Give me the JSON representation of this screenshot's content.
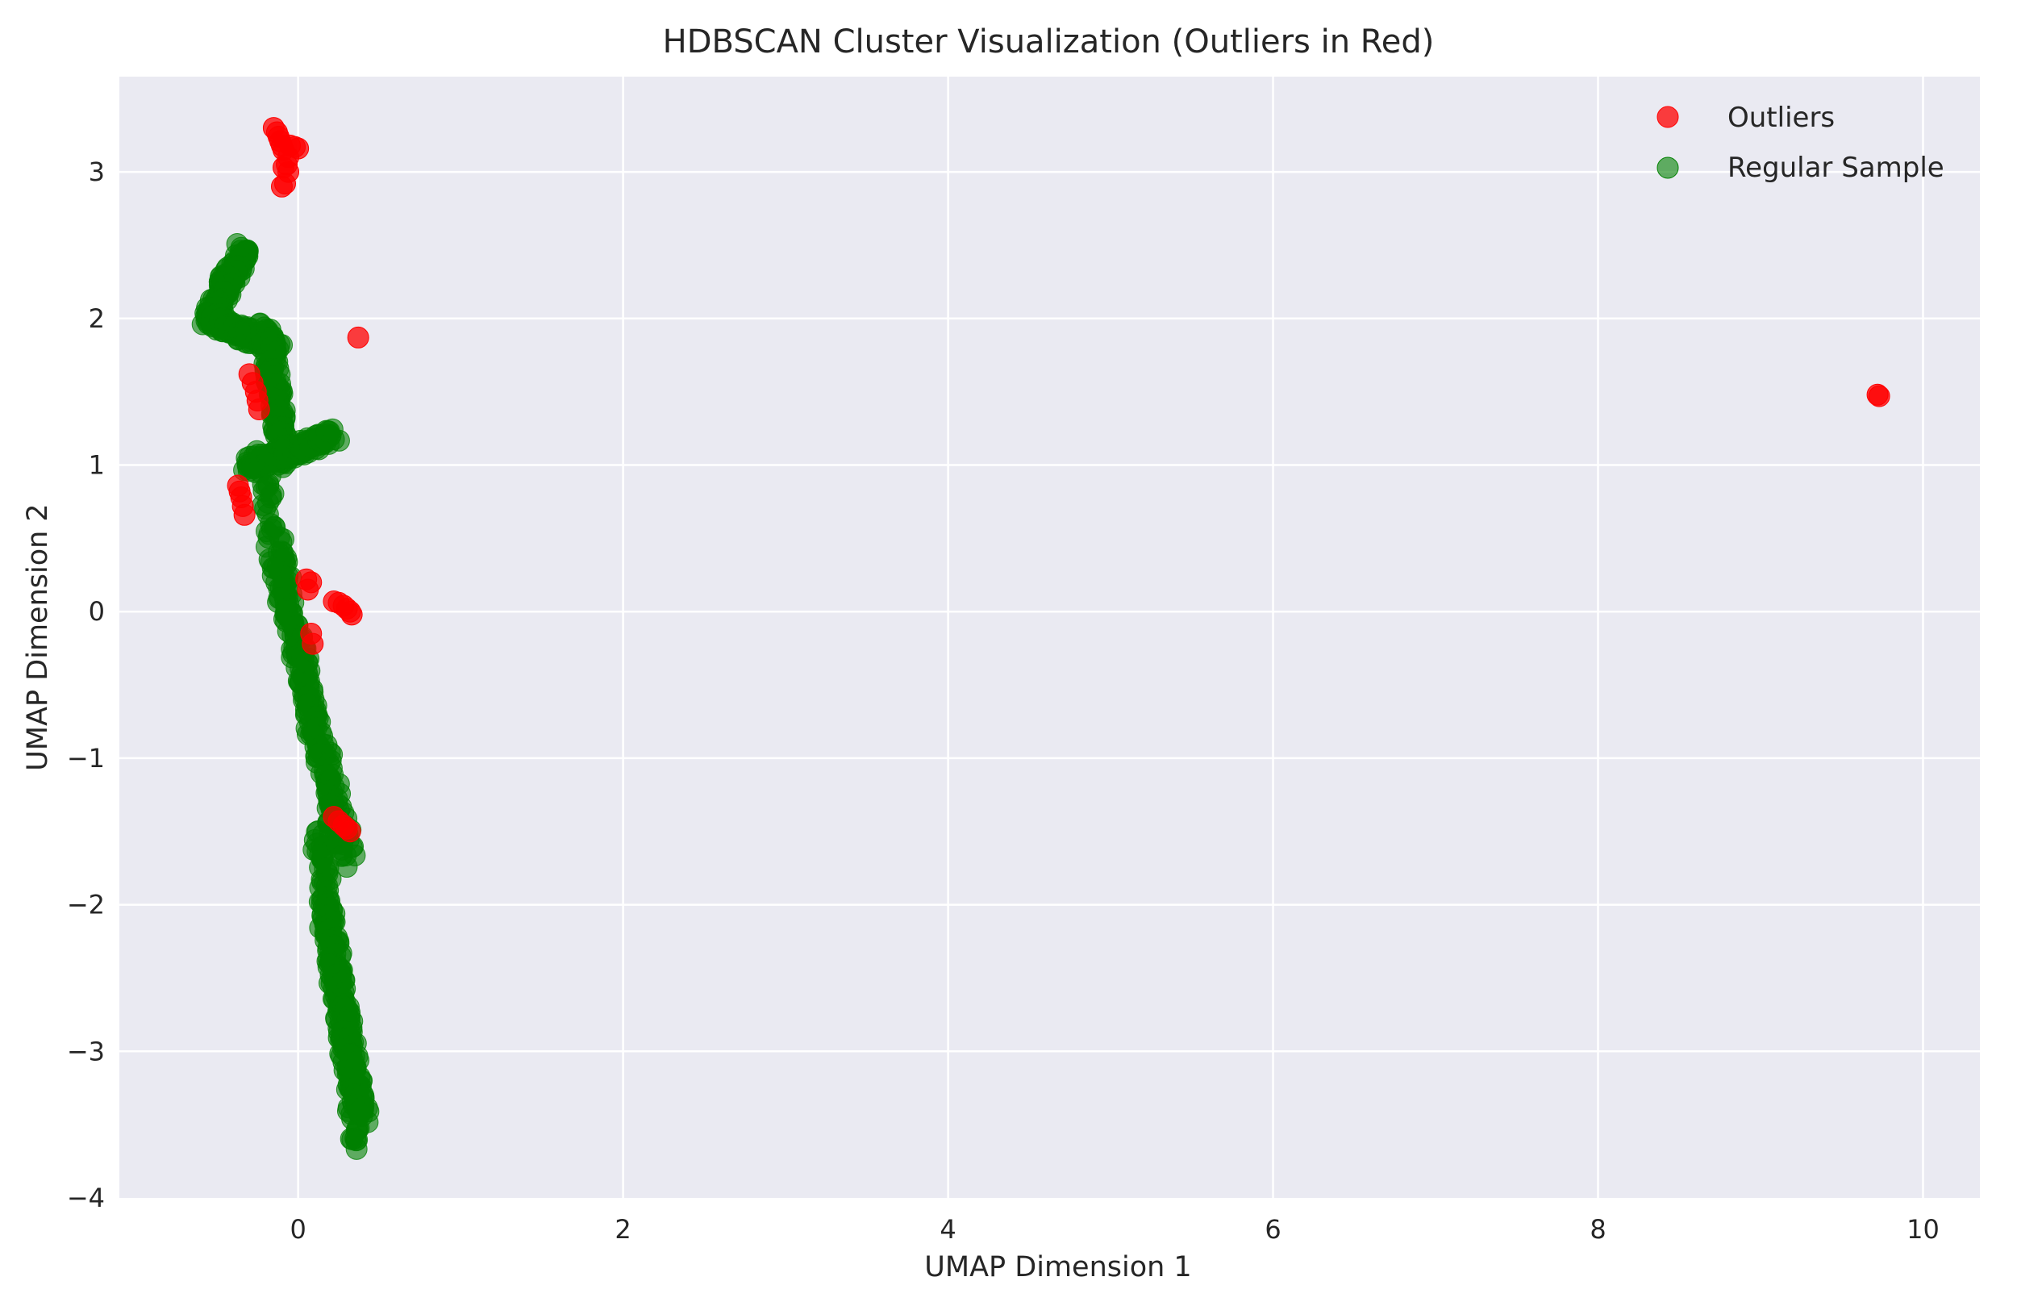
{
  "chart_data": {
    "type": "scatter",
    "title": "HDBSCAN Cluster Visualization (Outliers in Red)",
    "xlabel": "UMAP Dimension 1",
    "ylabel": "UMAP Dimension 2",
    "xlim": [
      -1.1,
      10.35
    ],
    "ylim": [
      -4.0,
      3.65
    ],
    "xticks": [
      0,
      2,
      4,
      6,
      8,
      10
    ],
    "yticks": [
      3,
      2,
      1,
      0,
      -1,
      -2,
      -3,
      -4
    ],
    "xtick_labels": [
      "0",
      "2",
      "4",
      "6",
      "8",
      "10"
    ],
    "ytick_labels": [
      "3",
      "2",
      "1",
      "0",
      "−1",
      "−2",
      "−3",
      "−4"
    ],
    "grid": true,
    "legend": {
      "placement": "top-right"
    },
    "colors": {
      "background": "#eaeaf2",
      "grid": "#ffffff",
      "outliers": "#ff0000",
      "regular": "#008000",
      "text": "#262626"
    },
    "series": [
      {
        "name": "Outliers",
        "color": "#ff0000",
        "opacity": 0.75,
        "points": [
          [
            -0.15,
            3.3
          ],
          [
            -0.13,
            3.27
          ],
          [
            -0.12,
            3.24
          ],
          [
            -0.11,
            3.21
          ],
          [
            -0.1,
            3.18
          ],
          [
            -0.09,
            3.15
          ],
          [
            -0.05,
            3.18
          ],
          [
            -0.02,
            3.17
          ],
          [
            0.0,
            3.16
          ],
          [
            -0.06,
            3.1
          ],
          [
            -0.07,
            3.05
          ],
          [
            -0.09,
            3.03
          ],
          [
            -0.06,
            3.0
          ],
          [
            -0.08,
            2.92
          ],
          [
            -0.1,
            2.9
          ],
          [
            0.37,
            1.87
          ],
          [
            9.72,
            1.48
          ],
          [
            9.73,
            1.47
          ],
          [
            -0.3,
            1.62
          ],
          [
            -0.28,
            1.56
          ],
          [
            -0.26,
            1.5
          ],
          [
            -0.25,
            1.44
          ],
          [
            -0.24,
            1.38
          ],
          [
            -0.37,
            0.86
          ],
          [
            -0.36,
            0.82
          ],
          [
            -0.35,
            0.78
          ],
          [
            -0.34,
            0.72
          ],
          [
            -0.33,
            0.66
          ],
          [
            0.05,
            0.22
          ],
          [
            0.08,
            0.2
          ],
          [
            0.06,
            0.15
          ],
          [
            0.22,
            0.07
          ],
          [
            0.25,
            0.06
          ],
          [
            0.28,
            0.04
          ],
          [
            0.3,
            0.02
          ],
          [
            0.32,
            0.0
          ],
          [
            0.33,
            -0.02
          ],
          [
            0.08,
            -0.15
          ],
          [
            0.09,
            -0.22
          ],
          [
            0.22,
            -1.4
          ],
          [
            0.25,
            -1.43
          ],
          [
            0.28,
            -1.46
          ],
          [
            0.3,
            -1.48
          ],
          [
            0.32,
            -1.5
          ]
        ]
      },
      {
        "name": "Regular Sample",
        "color": "#008000",
        "opacity": 0.6,
        "segments": [
          {
            "from": [
              -0.33,
              2.47
            ],
            "to": [
              -0.55,
              1.99
            ]
          },
          {
            "from": [
              -0.55,
              2.0
            ],
            "to": [
              -0.12,
              1.8
            ]
          },
          {
            "from": [
              -0.2,
              1.95
            ],
            "to": [
              -0.08,
              1.0
            ]
          },
          {
            "from": [
              -0.3,
              1.0
            ],
            "to": [
              0.22,
              1.2
            ]
          },
          {
            "from": [
              -0.25,
              1.1
            ],
            "to": [
              0.25,
              -1.6
            ]
          },
          {
            "from": [
              -0.15,
              0.4
            ],
            "to": [
              0.32,
              -1.7
            ]
          },
          {
            "from": [
              0.12,
              -1.5
            ],
            "to": [
              0.38,
              -3.65
            ]
          },
          {
            "from": [
              0.15,
              -2.0
            ],
            "to": [
              0.4,
              -3.45
            ]
          }
        ]
      }
    ]
  }
}
